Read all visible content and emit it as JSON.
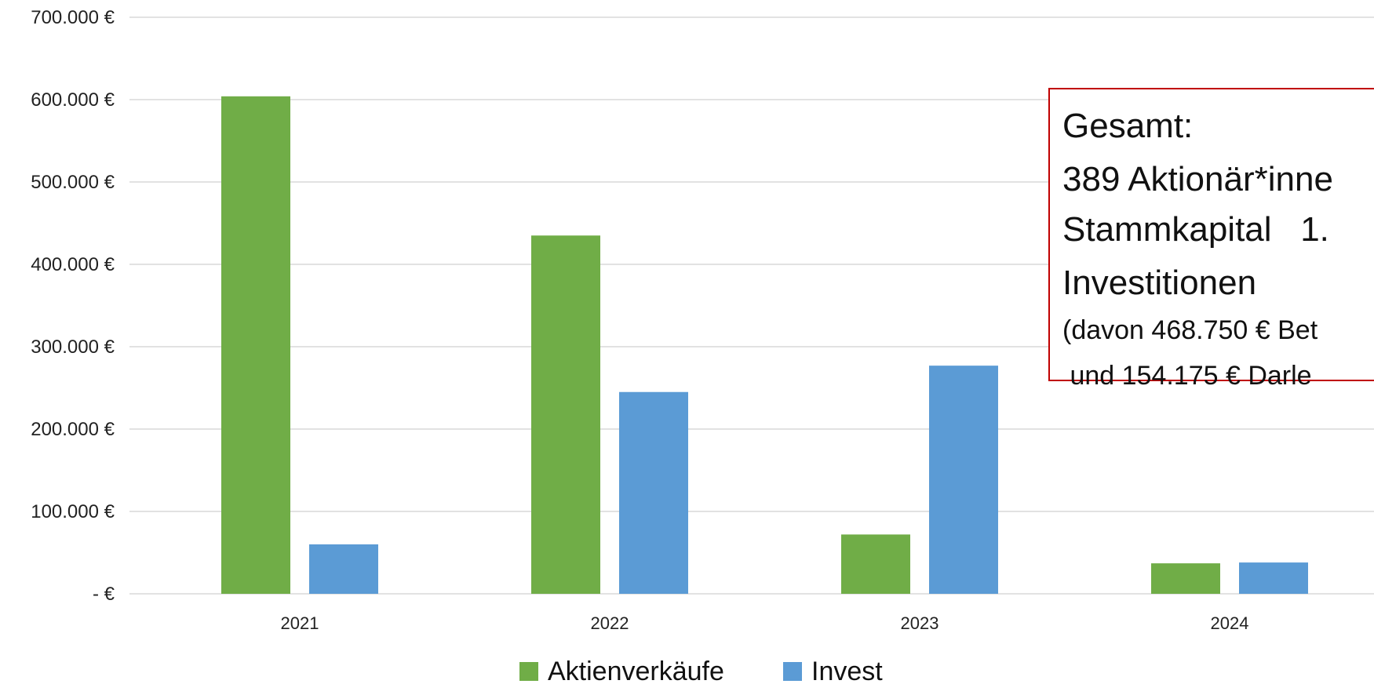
{
  "chart_data": {
    "type": "bar",
    "categories": [
      "2021",
      "2022",
      "2023",
      "2024"
    ],
    "series": [
      {
        "name": "Aktienverkäufe",
        "color": "#70AD47",
        "values": [
          604000,
          435000,
          72000,
          37000
        ]
      },
      {
        "name": "Invest",
        "color": "#5B9BD5",
        "values": [
          60000,
          245000,
          277000,
          38000
        ]
      }
    ],
    "ylim": [
      0,
      700000
    ],
    "yticks": [
      {
        "value": 0,
        "label": "- €"
      },
      {
        "value": 100000,
        "label": "100.000 €"
      },
      {
        "value": 200000,
        "label": "200.000 €"
      },
      {
        "value": 300000,
        "label": "300.000 €"
      },
      {
        "value": 400000,
        "label": "400.000 €"
      },
      {
        "value": 500000,
        "label": "500.000 €"
      },
      {
        "value": 600000,
        "label": "600.000 €"
      },
      {
        "value": 700000,
        "label": "700.000 €"
      }
    ],
    "grid": true,
    "legend_position": "bottom",
    "annotation": {
      "border_color": "#C00000",
      "lines": [
        "Gesamt:",
        "389 Aktionär*inne",
        "Stammkapital   1.",
        "Investitionen",
        "(davon 468.750 € Bet",
        " und 154.175 € Darle"
      ]
    }
  }
}
